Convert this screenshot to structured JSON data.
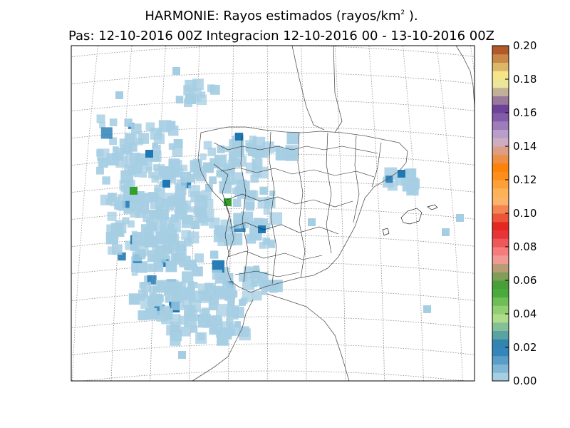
{
  "title": {
    "line1_prefix": "HARMONIE: Rayos estimados  (rayos/km",
    "line1_sup": "2",
    "line1_suffix": " ).",
    "line2": "Pas: 12-10-2016 00Z Integracion 12-10-2016 00 - 13-10-2016 00Z"
  },
  "colorbar": {
    "ticks": [
      "0.00",
      "0.02",
      "0.04",
      "0.06",
      "0.08",
      "0.10",
      "0.12",
      "0.14",
      "0.16",
      "0.18",
      "0.20"
    ],
    "range": [
      0,
      0.2
    ],
    "colors": [
      "#a6cee3",
      "#1f78b4",
      "#b2df8a",
      "#33a02c",
      "#fb9a99",
      "#e31a1c",
      "#fdbf6f",
      "#ff7f00",
      "#cab2d6",
      "#6a3d9a",
      "#ffff99",
      "#b15928"
    ]
  },
  "map": {
    "region": "Iberian Peninsula and Balearic Islands",
    "graticule": "dotted",
    "lightning_density_colors": {
      "low": "#a6cee3",
      "mid": "#1f78b4",
      "high": "#33a02c"
    }
  }
}
